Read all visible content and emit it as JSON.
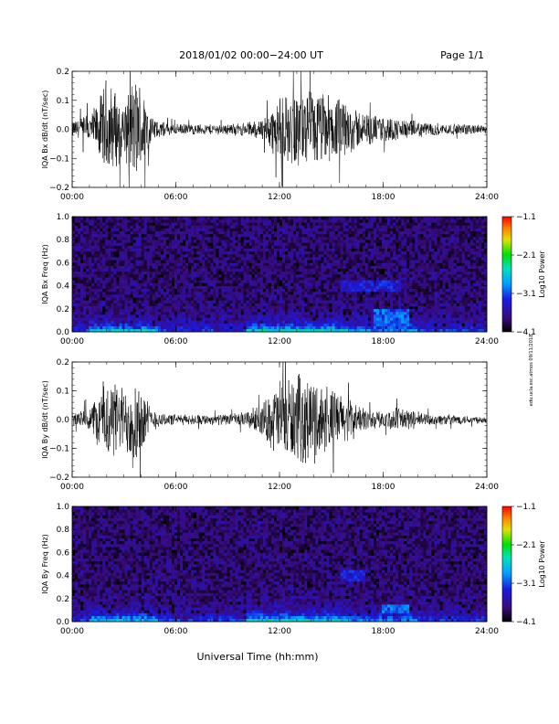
{
  "header": {
    "title": "2018/01/02  00:00−24:00 UT",
    "page": "Page 1/1"
  },
  "footer": {
    "xlabel": "Universal Time (hh:mm)",
    "side_note": "edu.ucla.ssc.atmos 09/11/2018"
  },
  "colors": {
    "trace": "#000000",
    "spectrogram_background": "#2b1570"
  },
  "chart_data": [
    {
      "type": "line",
      "id": "bx-dbdt",
      "ylabel": "IQA Bx dB/dt (nT/sec)",
      "ylim": [
        -0.2,
        0.2
      ],
      "yticks": [
        "0.2",
        "0.1",
        "0.0",
        "−0.1",
        "−0.2"
      ],
      "yticks_values": [
        0.2,
        0.1,
        0.0,
        -0.1,
        -0.2
      ],
      "xlim": [
        0,
        24
      ],
      "xticks": [
        "00:00",
        "06:00",
        "12:00",
        "18:00",
        "24:00"
      ],
      "x_units": "hours UT",
      "envelope": {
        "x": [
          0,
          1,
          1.5,
          2,
          2.5,
          3,
          3.5,
          4,
          4.5,
          5,
          6,
          7,
          8,
          9,
          10,
          11,
          12,
          13,
          14,
          15,
          16,
          17,
          18,
          19,
          20,
          21,
          22,
          23,
          24
        ],
        "amplitude": [
          0.03,
          0.06,
          0.1,
          0.2,
          0.15,
          0.1,
          0.2,
          0.18,
          0.06,
          0.03,
          0.02,
          0.02,
          0.02,
          0.02,
          0.025,
          0.04,
          0.12,
          0.14,
          0.15,
          0.13,
          0.1,
          0.06,
          0.05,
          0.04,
          0.03,
          0.025,
          0.02,
          0.02,
          0.015
        ]
      }
    },
    {
      "type": "heatmap",
      "id": "bx-spectrogram",
      "ylabel": "IQA Bx Freq (Hz)",
      "ylim": [
        0.0,
        1.0
      ],
      "yticks": [
        "1.0",
        "0.8",
        "0.6",
        "0.4",
        "0.2",
        "0.0"
      ],
      "yticks_values": [
        1.0,
        0.8,
        0.6,
        0.4,
        0.2,
        0.0
      ],
      "xlim": [
        0,
        24
      ],
      "xticks": [
        "00:00",
        "06:00",
        "12:00",
        "18:00",
        "24:00"
      ],
      "colorbar": {
        "label": "Log10 Power",
        "range": [
          -4.1,
          -1.1
        ],
        "ticks": [
          "−1.1",
          "−2.1",
          "−3.1",
          "−4.1"
        ],
        "ticks_values": [
          -1.1,
          -2.1,
          -3.1,
          -4.1
        ]
      },
      "features": [
        {
          "x_range": [
            15.5,
            19
          ],
          "f_range": [
            0.35,
            0.45
          ],
          "level": -3.3
        },
        {
          "x_range": [
            17.5,
            19.5
          ],
          "f_range": [
            0.05,
            0.2
          ],
          "level": -3.0
        }
      ]
    },
    {
      "type": "line",
      "id": "by-dbdt",
      "ylabel": "IQA By dB/dt (nT/sec)",
      "ylim": [
        -0.2,
        0.2
      ],
      "yticks": [
        "0.2",
        "0.1",
        "0.0",
        "−0.1",
        "−0.2"
      ],
      "yticks_values": [
        0.2,
        0.1,
        0.0,
        -0.1,
        -0.2
      ],
      "xlim": [
        0,
        24
      ],
      "xticks": [
        "00:00",
        "06:00",
        "12:00",
        "18:00",
        "24:00"
      ],
      "x_units": "hours UT",
      "envelope": {
        "x": [
          0,
          1,
          1.5,
          2,
          2.5,
          3,
          3.5,
          4,
          4.5,
          5,
          6,
          7,
          8,
          9,
          10,
          11,
          12,
          13,
          14,
          15,
          16,
          17,
          18,
          19,
          20,
          21,
          22,
          23,
          24
        ],
        "amplitude": [
          0.02,
          0.05,
          0.1,
          0.18,
          0.14,
          0.12,
          0.2,
          0.14,
          0.05,
          0.03,
          0.02,
          0.02,
          0.02,
          0.02,
          0.03,
          0.06,
          0.16,
          0.17,
          0.16,
          0.12,
          0.08,
          0.04,
          0.03,
          0.05,
          0.03,
          0.02,
          0.02,
          0.015,
          0.015
        ]
      }
    },
    {
      "type": "heatmap",
      "id": "by-spectrogram",
      "ylabel": "IQA By Freq (Hz)",
      "ylim": [
        0.0,
        1.0
      ],
      "yticks": [
        "1.0",
        "0.8",
        "0.6",
        "0.4",
        "0.2",
        "0.0"
      ],
      "yticks_values": [
        1.0,
        0.8,
        0.6,
        0.4,
        0.2,
        0.0
      ],
      "xlim": [
        0,
        24
      ],
      "xticks": [
        "00:00",
        "06:00",
        "12:00",
        "18:00",
        "24:00"
      ],
      "colorbar": {
        "label": "Log10 Power",
        "range": [
          -4.1,
          -1.1
        ],
        "ticks": [
          "−1.1",
          "−2.1",
          "−3.1",
          "−4.1"
        ],
        "ticks_values": [
          -1.1,
          -2.1,
          -3.1,
          -4.1
        ]
      },
      "features": [
        {
          "x_range": [
            15.5,
            17
          ],
          "f_range": [
            0.35,
            0.45
          ],
          "level": -3.3
        },
        {
          "x_range": [
            18,
            19.5
          ],
          "f_range": [
            0.08,
            0.16
          ],
          "level": -3.0
        }
      ]
    }
  ]
}
